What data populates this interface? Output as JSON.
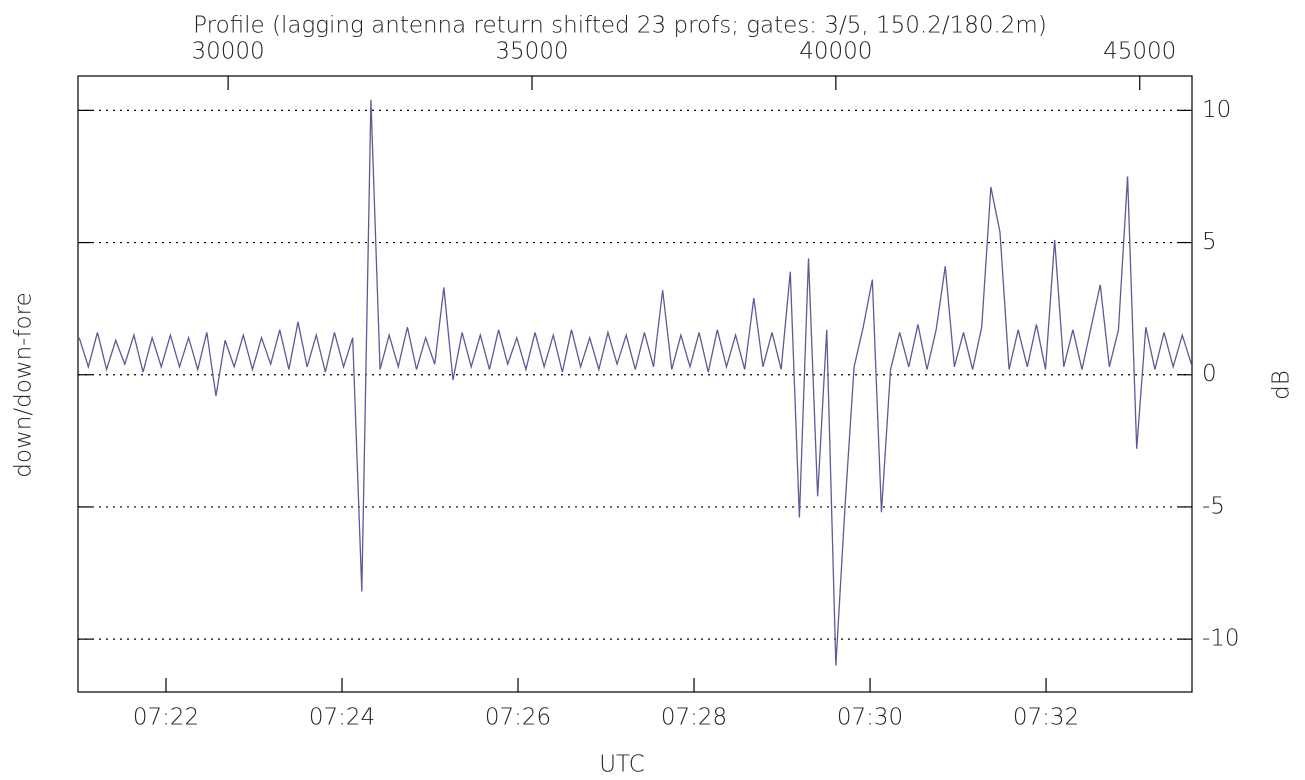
{
  "chart_data": {
    "type": "line",
    "title": "Profile (lagging antenna return shifted 23 profs; gates: 3/5, 150.2/180.2m)",
    "y_label": "down/down-fore",
    "y2_label": "dB",
    "x2_label": "UTC",
    "xlim": [
      27530,
      45860
    ],
    "xticks": [
      30000,
      35000,
      40000,
      45000
    ],
    "x2lim": [
      26460,
      27219.5
    ],
    "x2ticks": [
      {
        "value": 26520,
        "label": "07:22"
      },
      {
        "value": 26640,
        "label": "07:24"
      },
      {
        "value": 26760,
        "label": "07:26"
      },
      {
        "value": 26880,
        "label": "07:28"
      },
      {
        "value": 27000,
        "label": "07:30"
      },
      {
        "value": 27120,
        "label": "07:32"
      }
    ],
    "ylim": [
      -12,
      11.3
    ],
    "yticks": [
      -10,
      -5,
      0,
      5,
      10
    ],
    "grid": true,
    "x": [
      27550,
      27700,
      27850,
      28000,
      28150,
      28300,
      28450,
      28600,
      28750,
      28900,
      29050,
      29200,
      29350,
      29500,
      29650,
      29800,
      29950,
      30100,
      30250,
      30400,
      30550,
      30700,
      30850,
      31000,
      31150,
      31300,
      31450,
      31600,
      31750,
      31900,
      32050,
      32200,
      32350,
      32500,
      32650,
      32800,
      32950,
      33100,
      33250,
      33400,
      33550,
      33700,
      33850,
      34000,
      34150,
      34300,
      34450,
      34600,
      34750,
      34900,
      35050,
      35200,
      35350,
      35500,
      35650,
      35800,
      35950,
      36100,
      36250,
      36400,
      36550,
      36700,
      36850,
      37000,
      37150,
      37300,
      37450,
      37600,
      37750,
      37900,
      38050,
      38200,
      38350,
      38500,
      38650,
      38800,
      38950,
      39100,
      39250,
      39400,
      39550,
      39700,
      39850,
      40000,
      40150,
      40300,
      40450,
      40600,
      40750,
      40900,
      41050,
      41200,
      41350,
      41500,
      41650,
      41800,
      41950,
      42100,
      42250,
      42400,
      42550,
      42700,
      42850,
      43000,
      43150,
      43300,
      43450,
      43600,
      43750,
      43900,
      44050,
      44200,
      44350,
      44500,
      44650,
      44800,
      44950,
      45100,
      45250,
      45400,
      45550,
      45700,
      45850
    ],
    "series": [
      {
        "color": "#5b5b98",
        "values": [
          1.4,
          0.3,
          1.6,
          0.2,
          1.3,
          0.4,
          1.5,
          0.1,
          1.4,
          0.3,
          1.5,
          0.3,
          1.4,
          0.2,
          1.6,
          -0.8,
          1.3,
          0.3,
          1.5,
          0.2,
          1.4,
          0.4,
          1.7,
          0.2,
          2.0,
          0.3,
          1.5,
          0.1,
          1.6,
          0.3,
          1.4,
          -8.2,
          10.4,
          0.2,
          1.5,
          0.3,
          1.8,
          0.2,
          1.4,
          0.4,
          3.3,
          -0.2,
          1.6,
          0.3,
          1.5,
          0.2,
          1.7,
          0.4,
          1.4,
          0.2,
          1.6,
          0.3,
          1.5,
          0.1,
          1.7,
          0.3,
          1.4,
          0.2,
          1.6,
          0.4,
          1.5,
          0.2,
          1.6,
          0.3,
          3.2,
          0.2,
          1.5,
          0.3,
          1.6,
          0.1,
          1.7,
          0.3,
          1.5,
          0.2,
          2.9,
          0.3,
          1.6,
          0.2,
          3.9,
          -5.4,
          4.4,
          -4.6,
          1.7,
          -11.0,
          -5.0,
          0.3,
          1.8,
          3.6,
          -5.2,
          0.2,
          1.6,
          0.3,
          1.9,
          0.2,
          1.7,
          4.1,
          0.3,
          1.6,
          0.2,
          1.8,
          7.1,
          5.4,
          0.2,
          1.7,
          0.3,
          1.9,
          0.2,
          5.1,
          0.3,
          1.7,
          0.2,
          1.8,
          3.4,
          0.3,
          1.7,
          7.5,
          -2.8,
          1.8,
          0.2,
          1.6,
          0.3,
          1.5,
          0.4
        ]
      }
    ]
  }
}
